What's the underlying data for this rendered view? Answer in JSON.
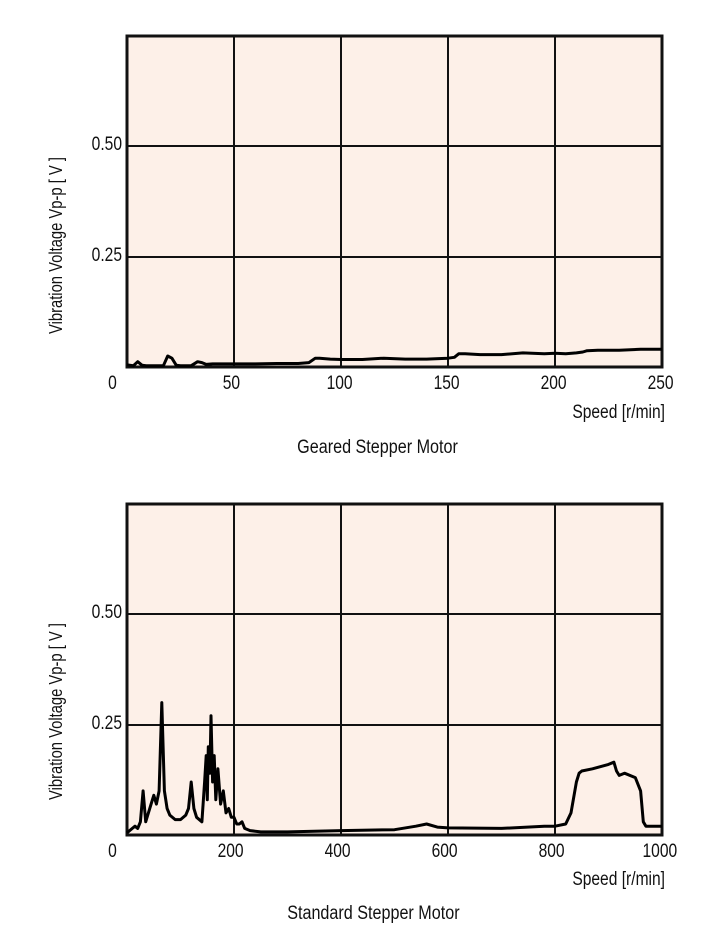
{
  "colors": {
    "plot_background": "#fdf0e8",
    "grid": "#111111",
    "line": "#000000"
  },
  "chart_data": [
    {
      "type": "line",
      "title": "Geared Stepper Motor",
      "xlabel": "Speed [r/min]",
      "ylabel": "Vibration Voltage Vp-p [ V ]",
      "xlim": [
        0,
        250
      ],
      "ylim": [
        0,
        0.75
      ],
      "xticks": [
        "0",
        "50",
        "100",
        "150",
        "200",
        "250"
      ],
      "yticks": [
        "0.25",
        "0.50"
      ],
      "grid": true,
      "x": [
        0,
        3,
        5,
        7,
        9,
        12,
        17,
        19,
        21,
        23,
        25,
        30,
        33,
        35,
        37,
        40,
        50,
        60,
        70,
        80,
        85,
        88,
        90,
        95,
        100,
        110,
        120,
        130,
        140,
        150,
        153,
        155,
        158,
        165,
        175,
        185,
        195,
        200,
        205,
        210,
        213,
        215,
        220,
        230,
        240,
        250
      ],
      "series": [
        {
          "name": "Geared Stepper Motor",
          "values": [
            0.005,
            0.003,
            0.012,
            0.004,
            0.003,
            0.003,
            0.003,
            0.025,
            0.02,
            0.004,
            0.003,
            0.003,
            0.012,
            0.01,
            0.006,
            0.007,
            0.007,
            0.007,
            0.008,
            0.008,
            0.01,
            0.02,
            0.02,
            0.018,
            0.017,
            0.017,
            0.02,
            0.018,
            0.018,
            0.02,
            0.022,
            0.03,
            0.03,
            0.028,
            0.028,
            0.032,
            0.03,
            0.031,
            0.03,
            0.032,
            0.034,
            0.037,
            0.038,
            0.038,
            0.04,
            0.04
          ]
        }
      ]
    },
    {
      "type": "line",
      "title": "Standard Stepper Motor",
      "xlabel": "Speed [r/min]",
      "ylabel": "Vibration Voltage Vp-p [ V ]",
      "xlim": [
        0,
        1000
      ],
      "ylim": [
        0,
        0.75
      ],
      "xticks": [
        "0",
        "200",
        "400",
        "600",
        "800",
        "1000"
      ],
      "yticks": [
        "0.25",
        "0.50"
      ],
      "grid": true,
      "x": [
        0,
        10,
        15,
        20,
        25,
        30,
        35,
        40,
        45,
        50,
        55,
        60,
        65,
        70,
        75,
        80,
        90,
        100,
        110,
        115,
        120,
        125,
        130,
        140,
        145,
        148,
        150,
        152,
        155,
        157,
        160,
        163,
        166,
        170,
        175,
        180,
        185,
        190,
        195,
        200,
        205,
        210,
        215,
        220,
        230,
        250,
        300,
        400,
        500,
        540,
        560,
        580,
        600,
        700,
        780,
        800,
        820,
        830,
        840,
        845,
        850,
        870,
        900,
        910,
        915,
        920,
        930,
        950,
        960,
        965,
        970,
        980,
        1000
      ],
      "series": [
        {
          "name": "Standard Stepper Motor",
          "values": [
            0.005,
            0.015,
            0.02,
            0.015,
            0.03,
            0.1,
            0.03,
            0.05,
            0.07,
            0.09,
            0.07,
            0.1,
            0.3,
            0.1,
            0.06,
            0.045,
            0.035,
            0.035,
            0.045,
            0.06,
            0.12,
            0.06,
            0.04,
            0.03,
            0.12,
            0.18,
            0.08,
            0.2,
            0.14,
            0.27,
            0.12,
            0.18,
            0.08,
            0.15,
            0.07,
            0.1,
            0.05,
            0.06,
            0.04,
            0.04,
            0.025,
            0.025,
            0.03,
            0.015,
            0.01,
            0.007,
            0.007,
            0.01,
            0.012,
            0.02,
            0.025,
            0.018,
            0.016,
            0.015,
            0.02,
            0.02,
            0.025,
            0.05,
            0.12,
            0.14,
            0.145,
            0.15,
            0.16,
            0.165,
            0.145,
            0.135,
            0.14,
            0.13,
            0.1,
            0.03,
            0.02,
            0.02,
            0.02
          ]
        }
      ]
    }
  ],
  "charts": [
    {
      "caption": "Geared Stepper Motor",
      "xlabel": "Speed [r/min]",
      "ylabel": "Vibration Voltage Vp-p [ V ]",
      "xticks": [
        "0",
        "50",
        "100",
        "150",
        "200",
        "250"
      ],
      "yticks": [
        "0.50",
        "0.25"
      ]
    },
    {
      "caption": "Standard Stepper Motor",
      "xlabel": "Speed [r/min]",
      "ylabel": "Vibration Voltage Vp-p [ V ]",
      "xticks": [
        "0",
        "200",
        "400",
        "600",
        "800",
        "1000"
      ],
      "yticks": [
        "0.50",
        "0.25"
      ]
    }
  ]
}
